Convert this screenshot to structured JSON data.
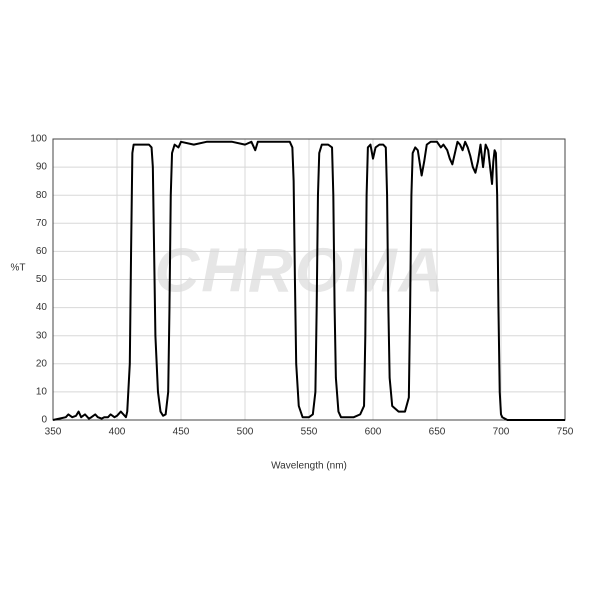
{
  "chart_data": {
    "type": "line",
    "xlabel": "Wavelength (nm)",
    "ylabel": "%T",
    "watermark": "CHROMA",
    "xlim": [
      350,
      750
    ],
    "ylim": [
      0,
      100
    ],
    "xticks": [
      350,
      400,
      450,
      500,
      550,
      600,
      650,
      700,
      750
    ],
    "yticks": [
      0,
      10,
      20,
      30,
      40,
      50,
      60,
      70,
      80,
      90,
      100
    ],
    "grid": true,
    "x": [
      350,
      355,
      360,
      362,
      365,
      368,
      370,
      372,
      375,
      378,
      380,
      383,
      385,
      388,
      390,
      393,
      395,
      398,
      400,
      403,
      405,
      407,
      408,
      410,
      411,
      412,
      413,
      420,
      425,
      427,
      428,
      429,
      430,
      432,
      434,
      436,
      438,
      440,
      441,
      442,
      443,
      445,
      448,
      450,
      460,
      470,
      480,
      490,
      500,
      505,
      508,
      510,
      520,
      530,
      535,
      537,
      538,
      539,
      540,
      542,
      545,
      550,
      553,
      555,
      556,
      557,
      558,
      560,
      565,
      568,
      569,
      570,
      571,
      573,
      575,
      580,
      585,
      590,
      593,
      594,
      595,
      596,
      598,
      600,
      602,
      605,
      608,
      610,
      611,
      612,
      613,
      615,
      620,
      625,
      628,
      629,
      630,
      631,
      633,
      635,
      637,
      638,
      640,
      642,
      645,
      650,
      653,
      655,
      658,
      660,
      662,
      664,
      666,
      668,
      670,
      672,
      674,
      676,
      678,
      680,
      682,
      684,
      686,
      688,
      690,
      692,
      693,
      694,
      695,
      696,
      697,
      698,
      699,
      700,
      701,
      703,
      705,
      750
    ],
    "series": [
      {
        "color": "#000000",
        "values": [
          0,
          0.5,
          1,
          2,
          1,
          1.5,
          3,
          1,
          2,
          0.5,
          1,
          2,
          1,
          0.5,
          1,
          1,
          2,
          1,
          1.5,
          3,
          2,
          1,
          3,
          20,
          60,
          95,
          98,
          98,
          98,
          97,
          90,
          60,
          30,
          10,
          3,
          1.5,
          2,
          10,
          40,
          80,
          95,
          98,
          97,
          99,
          98,
          99,
          99,
          99,
          98,
          99,
          96,
          99,
          99,
          99,
          99,
          97,
          85,
          50,
          20,
          5,
          1,
          1,
          2,
          10,
          40,
          80,
          95,
          98,
          98,
          97,
          80,
          40,
          15,
          3,
          1,
          1,
          1,
          2,
          5,
          30,
          80,
          97,
          98,
          93,
          97,
          98,
          98,
          97,
          80,
          40,
          15,
          5,
          3,
          3,
          8,
          40,
          80,
          95,
          97,
          96,
          90,
          87,
          92,
          98,
          99,
          99,
          97,
          98,
          96,
          93,
          91,
          95,
          99,
          98,
          96,
          99,
          97,
          94,
          90,
          88,
          92,
          98,
          90,
          98,
          96,
          88,
          84,
          92,
          96,
          95,
          80,
          40,
          10,
          2,
          1,
          0.5,
          0,
          0
        ]
      }
    ]
  }
}
